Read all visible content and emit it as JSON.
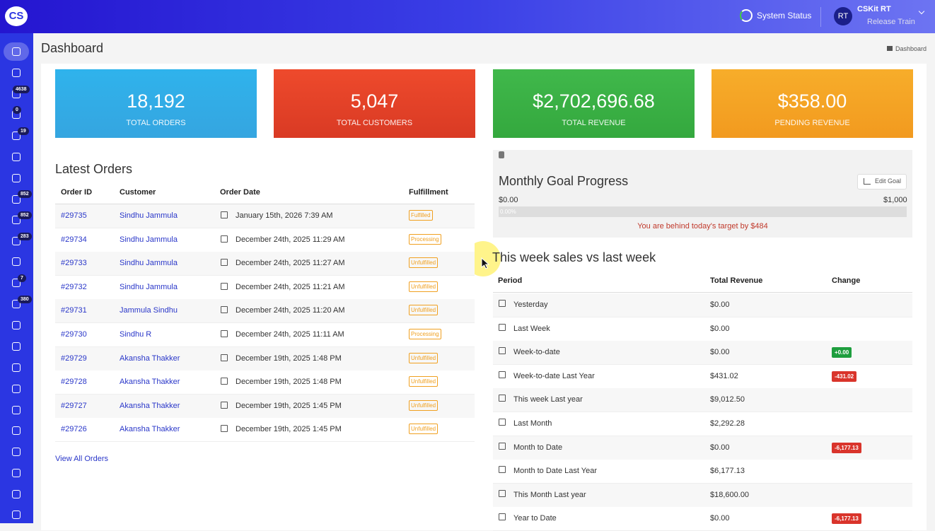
{
  "brand": "CS",
  "header": {
    "system_status": "System Status",
    "user_initials": "RT",
    "user_name": "CSKit RT",
    "user_role": "Release Train"
  },
  "sidebar": {
    "badges": [
      "4638",
      "0",
      "19",
      "852",
      "852",
      "283",
      "7",
      "380"
    ]
  },
  "page": {
    "title": "Dashboard",
    "breadcrumb": "Dashboard"
  },
  "stats": [
    {
      "value": "18,192",
      "label": "TOTAL ORDERS"
    },
    {
      "value": "5,047",
      "label": "TOTAL CUSTOMERS"
    },
    {
      "value": "$2,702,696.68",
      "label": "TOTAL REVENUE"
    },
    {
      "value": "$358.00",
      "label": "PENDING REVENUE"
    }
  ],
  "latest_orders": {
    "title": "Latest Orders",
    "columns": [
      "Order ID",
      "Customer",
      "Order Date",
      "Fulfillment"
    ],
    "rows": [
      [
        "#29735",
        "Sindhu Jammula",
        "January 15th, 2026 7:39 AM",
        "Fulfilled"
      ],
      [
        "#29734",
        "Sindhu Jammula",
        "December 24th, 2025 11:29 AM",
        "Processing"
      ],
      [
        "#29733",
        "Sindhu Jammula",
        "December 24th, 2025 11:27 AM",
        "Unfulfilled"
      ],
      [
        "#29732",
        "Sindhu Jammula",
        "December 24th, 2025 11:21 AM",
        "Unfulfilled"
      ],
      [
        "#29731",
        "Jammula Sindhu",
        "December 24th, 2025 11:20 AM",
        "Unfulfilled"
      ],
      [
        "#29730",
        "Sindhu R",
        "December 24th, 2025 11:11 AM",
        "Processing"
      ],
      [
        "#29729",
        "Akansha Thakker",
        "December 19th, 2025 1:48 PM",
        "Unfulfilled"
      ],
      [
        "#29728",
        "Akansha Thakker",
        "December 19th, 2025 1:48 PM",
        "Unfulfilled"
      ],
      [
        "#29727",
        "Akansha Thakker",
        "December 19th, 2025 1:45 PM",
        "Unfulfilled"
      ],
      [
        "#29726",
        "Akansha Thakker",
        "December 19th, 2025 1:45 PM",
        "Unfulfilled"
      ]
    ],
    "view_all": "View All Orders"
  },
  "goal": {
    "title": "Monthly Goal Progress",
    "edit": "Edit Goal",
    "min": "$0.00",
    "max": "$1,000",
    "bar_label": "0.00%",
    "message": "You are behind today's target by $484"
  },
  "weekly": {
    "title": "This week sales vs last week",
    "columns": [
      "Period",
      "Total Revenue",
      "Change"
    ],
    "rows": [
      [
        "Yesterday",
        "$0.00",
        null
      ],
      [
        "Last Week",
        "$0.00",
        null
      ],
      [
        "Week-to-date",
        "$0.00",
        "+0.00"
      ],
      [
        "Week-to-date Last Year",
        "$431.02",
        "-431.02"
      ],
      [
        "This week Last year",
        "$9,012.50",
        null
      ],
      [
        "Last Month",
        "$2,292.28",
        null
      ],
      [
        "Month to Date",
        "$0.00",
        "-6,177.13"
      ],
      [
        "Month to Date Last Year",
        "$6,177.13",
        null
      ],
      [
        "This Month Last year",
        "$18,600.00",
        null
      ],
      [
        "Year to Date",
        "$0.00",
        "-6,177.13"
      ]
    ]
  }
}
